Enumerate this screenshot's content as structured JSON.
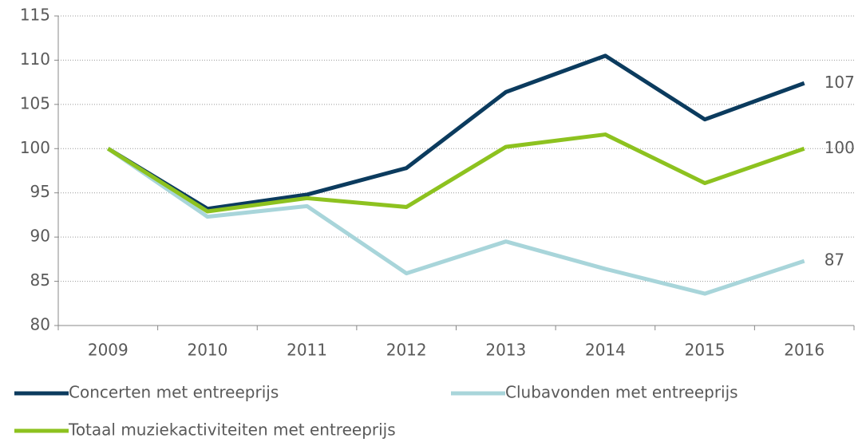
{
  "chart_data": {
    "type": "line",
    "categories": [
      "2009",
      "2010",
      "2011",
      "2012",
      "2013",
      "2014",
      "2015",
      "2016"
    ],
    "series": [
      {
        "name": "Concerten met entreeprijs",
        "color": "#0b3b5e",
        "values": [
          100,
          93.2,
          94.8,
          97.8,
          106.4,
          110.5,
          103.3,
          107.4
        ],
        "value_labels": [
          null,
          null,
          null,
          null,
          null,
          null,
          null,
          "107"
        ]
      },
      {
        "name": "Clubavonden met entreeprijs",
        "color": "#a8d5da",
        "values": [
          100,
          92.3,
          93.5,
          85.9,
          89.5,
          86.4,
          83.6,
          87.3
        ],
        "value_labels": [
          null,
          null,
          null,
          null,
          null,
          null,
          null,
          "87"
        ]
      },
      {
        "name": "Totaal muziekactiviteiten met entreeprijs",
        "color": "#8dc21f",
        "values": [
          100,
          92.9,
          94.4,
          93.4,
          100.2,
          101.6,
          96.1,
          100
        ],
        "value_labels": [
          null,
          null,
          null,
          null,
          null,
          null,
          null,
          "100"
        ]
      }
    ],
    "ylim": [
      80,
      115
    ],
    "yticks": [
      80,
      85,
      90,
      95,
      100,
      105,
      110,
      115
    ],
    "grid": true
  }
}
